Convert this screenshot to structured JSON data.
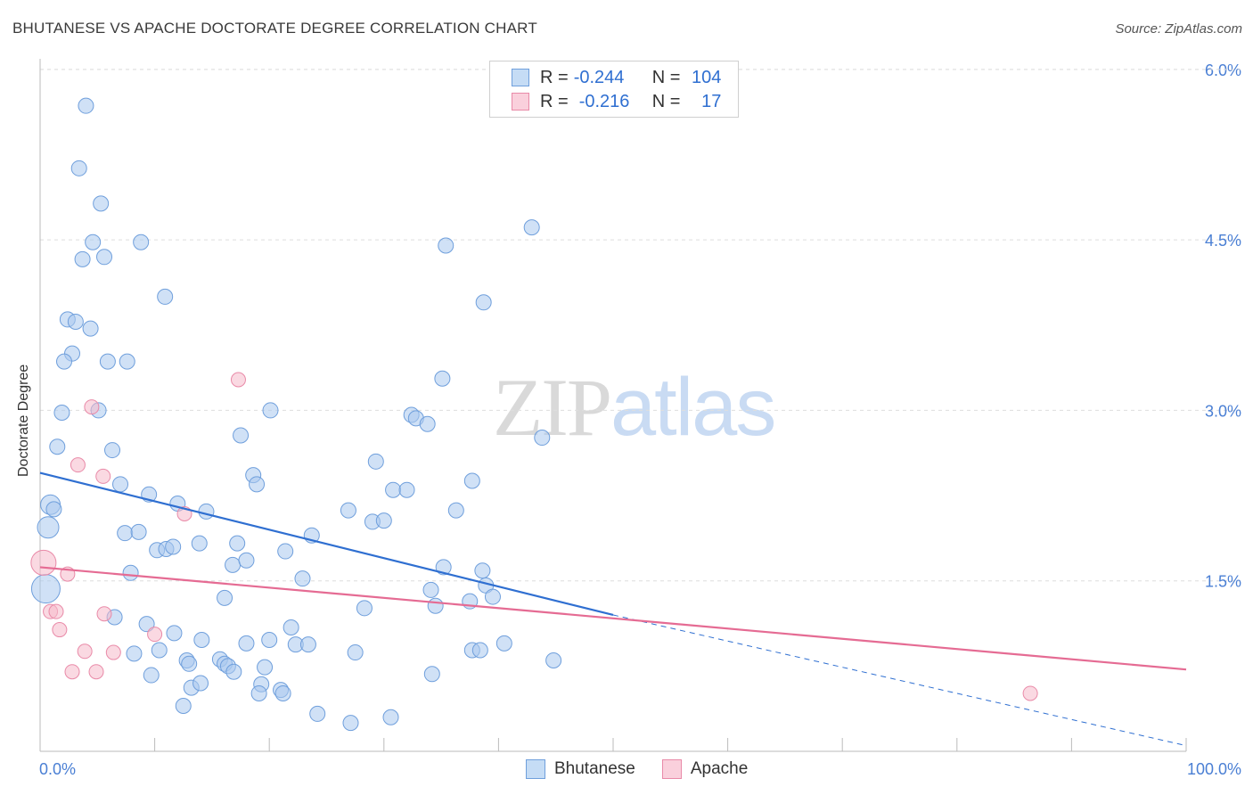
{
  "header": {
    "title": "BHUTANESE VS APACHE DOCTORATE DEGREE CORRELATION CHART",
    "source": "Source: ZipAtlas.com"
  },
  "watermark": {
    "zip": "ZIP",
    "atlas": "atlas"
  },
  "legend": {
    "rows": [
      {
        "r_label": "R = ",
        "r_value": "-0.244",
        "n_label": "N = ",
        "n_value": "104",
        "color": "#a9c8ef"
      },
      {
        "r_label": "R = ",
        "r_value": "-0.216",
        "n_label": "N = ",
        "n_value": "17",
        "color": "#f6b9cb"
      }
    ],
    "bottom": [
      {
        "label": "Bhutanese",
        "color": "#a9c8ef"
      },
      {
        "label": "Apache",
        "color": "#f6b9cb"
      }
    ]
  },
  "colors": {
    "blue_fill": "#a9c8ef",
    "blue_stroke": "#6f9fdc",
    "blue_line": "#2f6fd1",
    "pink_fill": "#f6b9cb",
    "pink_stroke": "#e98aa8",
    "pink_line": "#e56b93",
    "axis_text": "#4a7fd4"
  },
  "chart_data": {
    "type": "scatter",
    "title": "BHUTANESE VS APACHE DOCTORATE DEGREE CORRELATION CHART",
    "xlabel": "",
    "ylabel": "Doctorate Degree",
    "xlim": [
      0,
      100
    ],
    "ylim": [
      0,
      6.2
    ],
    "x_tick_labels": [
      "0.0%",
      "100.0%"
    ],
    "y_ticks": [
      1.5,
      3.0,
      4.5,
      6.0
    ],
    "y_tick_labels": [
      "1.5%",
      "3.0%",
      "4.5%",
      "6.0%"
    ],
    "grid": "horizontal dashed",
    "series": [
      {
        "name": "Bhutanese",
        "r": -0.244,
        "n": 104,
        "trend": {
          "x0": 0,
          "y0": 2.45,
          "x1": 50,
          "y1": 1.2,
          "dashed_to": [
            100,
            0.05
          ]
        },
        "points": [
          [
            4.0,
            5.68
          ],
          [
            3.4,
            5.13
          ],
          [
            5.3,
            4.82
          ],
          [
            4.6,
            4.48
          ],
          [
            3.7,
            4.33
          ],
          [
            5.6,
            4.35
          ],
          [
            8.8,
            4.48
          ],
          [
            10.9,
            4.0
          ],
          [
            2.4,
            3.8
          ],
          [
            3.1,
            3.78
          ],
          [
            4.4,
            3.72
          ],
          [
            2.8,
            3.5
          ],
          [
            2.1,
            3.43
          ],
          [
            5.9,
            3.43
          ],
          [
            7.6,
            3.43
          ],
          [
            1.9,
            2.98
          ],
          [
            5.1,
            3.0
          ],
          [
            1.5,
            2.68
          ],
          [
            6.3,
            2.65
          ],
          [
            0.9,
            2.17
          ],
          [
            1.2,
            2.13
          ],
          [
            0.7,
            1.97
          ],
          [
            7.0,
            2.35
          ],
          [
            9.5,
            2.26
          ],
          [
            12.0,
            2.18
          ],
          [
            14.5,
            2.11
          ],
          [
            7.4,
            1.92
          ],
          [
            8.6,
            1.93
          ],
          [
            10.2,
            1.77
          ],
          [
            11.0,
            1.78
          ],
          [
            11.6,
            1.8
          ],
          [
            13.9,
            1.83
          ],
          [
            17.5,
            2.78
          ],
          [
            18.6,
            2.43
          ],
          [
            18.9,
            2.35
          ],
          [
            20.1,
            3.0
          ],
          [
            17.2,
            1.83
          ],
          [
            16.8,
            1.64
          ],
          [
            18.0,
            1.68
          ],
          [
            21.4,
            1.76
          ],
          [
            23.7,
            1.9
          ],
          [
            22.9,
            1.52
          ],
          [
            7.9,
            1.57
          ],
          [
            16.1,
            1.35
          ],
          [
            6.5,
            1.18
          ],
          [
            9.3,
            1.12
          ],
          [
            11.7,
            1.04
          ],
          [
            14.1,
            0.98
          ],
          [
            18.0,
            0.95
          ],
          [
            20.0,
            0.98
          ],
          [
            21.9,
            1.09
          ],
          [
            22.3,
            0.94
          ],
          [
            23.4,
            0.94
          ],
          [
            8.2,
            0.86
          ],
          [
            10.4,
            0.89
          ],
          [
            12.8,
            0.8
          ],
          [
            13.0,
            0.77
          ],
          [
            15.7,
            0.81
          ],
          [
            16.1,
            0.77
          ],
          [
            16.4,
            0.75
          ],
          [
            16.9,
            0.7
          ],
          [
            19.6,
            0.74
          ],
          [
            9.7,
            0.67
          ],
          [
            13.2,
            0.56
          ],
          [
            14.0,
            0.6
          ],
          [
            19.3,
            0.59
          ],
          [
            19.1,
            0.51
          ],
          [
            21.0,
            0.54
          ],
          [
            21.2,
            0.51
          ],
          [
            12.5,
            0.4
          ],
          [
            24.2,
            0.33
          ],
          [
            27.1,
            0.25
          ],
          [
            30.6,
            0.3
          ],
          [
            28.3,
            1.26
          ],
          [
            27.5,
            0.87
          ],
          [
            26.9,
            2.12
          ],
          [
            29.0,
            2.02
          ],
          [
            30.0,
            2.03
          ],
          [
            29.3,
            2.55
          ],
          [
            30.8,
            2.3
          ],
          [
            32.0,
            2.3
          ],
          [
            32.4,
            2.96
          ],
          [
            32.8,
            2.93
          ],
          [
            33.8,
            2.88
          ],
          [
            35.1,
            3.28
          ],
          [
            34.1,
            1.42
          ],
          [
            34.5,
            1.28
          ],
          [
            35.2,
            1.62
          ],
          [
            36.3,
            2.12
          ],
          [
            37.7,
            2.38
          ],
          [
            37.5,
            1.32
          ],
          [
            38.6,
            1.59
          ],
          [
            38.9,
            1.46
          ],
          [
            39.5,
            1.36
          ],
          [
            37.7,
            0.89
          ],
          [
            38.4,
            0.89
          ],
          [
            40.5,
            0.95
          ],
          [
            44.8,
            0.8
          ],
          [
            34.2,
            0.68
          ],
          [
            35.4,
            4.45
          ],
          [
            38.7,
            3.95
          ],
          [
            42.9,
            4.61
          ],
          [
            43.8,
            2.76
          ],
          [
            0.5,
            1.43
          ]
        ],
        "sizes_note": "mostly uniform markers; a few larger markers near x=0"
      },
      {
        "name": "Apache",
        "r": -0.216,
        "n": 17,
        "trend": {
          "x0": 0,
          "y0": 1.62,
          "x1": 100,
          "y1": 0.72
        },
        "points": [
          [
            17.3,
            3.27
          ],
          [
            4.5,
            3.03
          ],
          [
            3.3,
            2.52
          ],
          [
            5.5,
            2.42
          ],
          [
            12.6,
            2.09
          ],
          [
            2.4,
            1.56
          ],
          [
            0.3,
            1.66
          ],
          [
            0.9,
            1.23
          ],
          [
            1.4,
            1.23
          ],
          [
            5.6,
            1.21
          ],
          [
            1.7,
            1.07
          ],
          [
            10.0,
            1.03
          ],
          [
            3.9,
            0.88
          ],
          [
            6.4,
            0.87
          ],
          [
            2.8,
            0.7
          ],
          [
            4.9,
            0.7
          ],
          [
            86.4,
            0.51
          ]
        ]
      }
    ]
  }
}
